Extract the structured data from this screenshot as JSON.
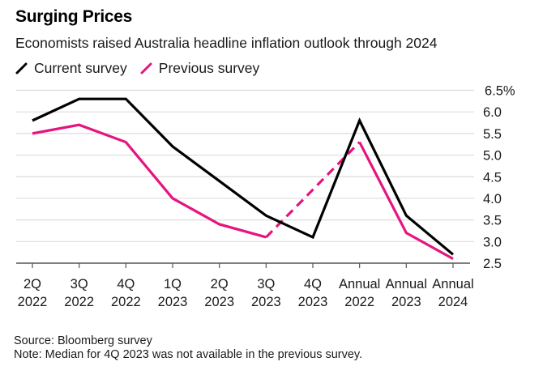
{
  "header": {
    "title": "Surging Prices",
    "subtitle": "Economists raised Australia headline inflation outlook through 2024"
  },
  "legend": [
    {
      "label": "Current survey",
      "color": "#000000",
      "icon": "slash-line-icon"
    },
    {
      "label": "Previous survey",
      "color": "#e6147f",
      "icon": "slash-line-icon"
    }
  ],
  "footer": {
    "source": "Source: Bloomberg survey",
    "note": "Note: Median for 4Q 2023 was not available in the previous survey."
  },
  "chart_data": {
    "type": "line",
    "title": "Surging Prices",
    "subtitle": "Economists raised Australia headline inflation outlook through 2024",
    "xlabel": "",
    "ylabel": "",
    "categories": [
      [
        "2Q",
        "2022"
      ],
      [
        "3Q",
        "2022"
      ],
      [
        "4Q",
        "2022"
      ],
      [
        "1Q",
        "2023"
      ],
      [
        "2Q",
        "2023"
      ],
      [
        "3Q",
        "2023"
      ],
      [
        "4Q",
        "2023"
      ],
      [
        "Annual",
        "2022"
      ],
      [
        "Annual",
        "2023"
      ],
      [
        "Annual",
        "2024"
      ]
    ],
    "yticks": [
      "6.5%",
      "6.0",
      "5.5",
      "5.0",
      "4.5",
      "4.0",
      "3.5",
      "3.0",
      "2.5"
    ],
    "ytick_values": [
      6.5,
      6.0,
      5.5,
      5.0,
      4.5,
      4.0,
      3.5,
      3.0,
      2.5
    ],
    "ylim": [
      2.5,
      6.5
    ],
    "y_axis_side": "right",
    "grid": true,
    "legend_position": "top-left",
    "series": [
      {
        "name": "Current survey",
        "color": "#000000",
        "values": [
          5.8,
          6.3,
          6.3,
          5.2,
          4.4,
          3.6,
          3.1,
          5.8,
          3.6,
          2.7
        ]
      },
      {
        "name": "Previous survey",
        "color": "#e6147f",
        "values": [
          5.5,
          5.7,
          5.3,
          4.0,
          3.4,
          3.1,
          null,
          5.3,
          3.2,
          2.6
        ],
        "dashed_bridge": {
          "from_index": 5,
          "to_index": 7,
          "note": "4Q 2023 not available; dashed connector"
        }
      }
    ]
  }
}
